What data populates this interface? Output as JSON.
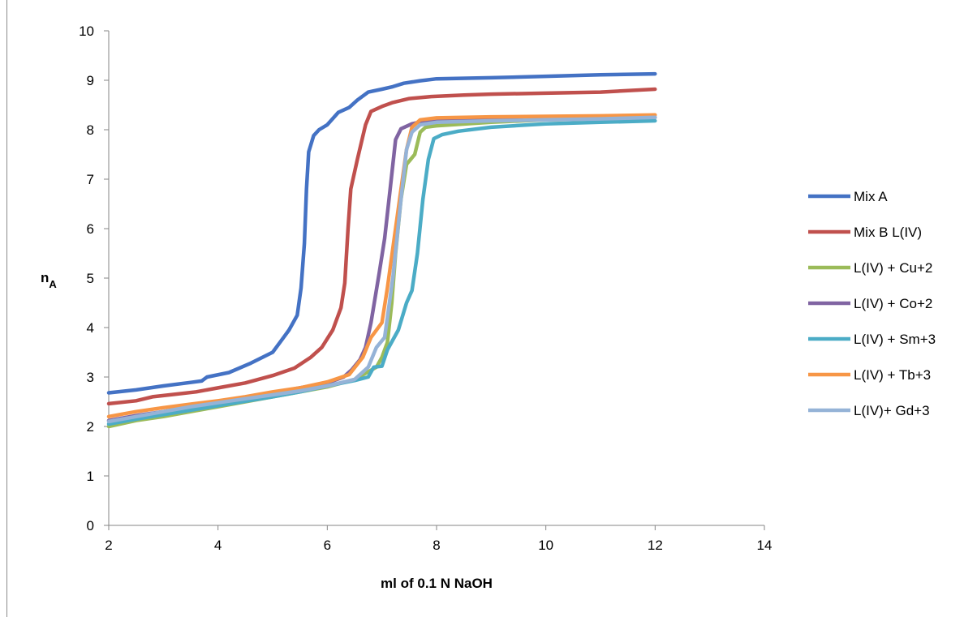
{
  "chart_data": {
    "type": "line",
    "title": "",
    "xlabel": "ml of 0.1 N NaOH",
    "ylabel": "n",
    "ylabel_sub": "A",
    "xlim": [
      2,
      14
    ],
    "ylim": [
      0,
      10
    ],
    "xticks": [
      "2",
      "4",
      "6",
      "8",
      "10",
      "12",
      "14"
    ],
    "yticks": [
      "0",
      "1",
      "2",
      "3",
      "4",
      "5",
      "6",
      "7",
      "8",
      "9",
      "10"
    ],
    "grid": false,
    "legend_position": "right",
    "series": [
      {
        "name": "Mix A",
        "color": "#4472C4",
        "points": [
          [
            2.0,
            2.68
          ],
          [
            2.5,
            2.74
          ],
          [
            3.0,
            2.82
          ],
          [
            3.5,
            2.89
          ],
          [
            3.7,
            2.92
          ],
          [
            3.8,
            3.0
          ],
          [
            4.2,
            3.09
          ],
          [
            4.6,
            3.28
          ],
          [
            5.0,
            3.5
          ],
          [
            5.2,
            3.8
          ],
          [
            5.3,
            3.95
          ],
          [
            5.45,
            4.25
          ],
          [
            5.52,
            4.8
          ],
          [
            5.58,
            5.7
          ],
          [
            5.62,
            6.8
          ],
          [
            5.66,
            7.55
          ],
          [
            5.75,
            7.88
          ],
          [
            5.85,
            8.0
          ],
          [
            6.0,
            8.1
          ],
          [
            6.2,
            8.35
          ],
          [
            6.4,
            8.45
          ],
          [
            6.55,
            8.6
          ],
          [
            6.75,
            8.76
          ],
          [
            7.0,
            8.82
          ],
          [
            7.2,
            8.87
          ],
          [
            7.4,
            8.94
          ],
          [
            7.7,
            8.99
          ],
          [
            8.0,
            9.03
          ],
          [
            9.0,
            9.05
          ],
          [
            10.0,
            9.08
          ],
          [
            11.0,
            9.11
          ],
          [
            12.0,
            9.13
          ]
        ]
      },
      {
        "name": "Mix B L(IV)",
        "color": "#C0504D",
        "points": [
          [
            2.0,
            2.46
          ],
          [
            2.5,
            2.52
          ],
          [
            2.8,
            2.6
          ],
          [
            3.2,
            2.65
          ],
          [
            3.6,
            2.7
          ],
          [
            4.0,
            2.78
          ],
          [
            4.5,
            2.88
          ],
          [
            5.0,
            3.03
          ],
          [
            5.4,
            3.18
          ],
          [
            5.7,
            3.4
          ],
          [
            5.9,
            3.6
          ],
          [
            6.1,
            3.95
          ],
          [
            6.25,
            4.4
          ],
          [
            6.32,
            4.9
          ],
          [
            6.38,
            6.0
          ],
          [
            6.43,
            6.8
          ],
          [
            6.55,
            7.4
          ],
          [
            6.7,
            8.1
          ],
          [
            6.8,
            8.37
          ],
          [
            7.0,
            8.47
          ],
          [
            7.2,
            8.55
          ],
          [
            7.5,
            8.63
          ],
          [
            7.9,
            8.67
          ],
          [
            8.5,
            8.7
          ],
          [
            9.0,
            8.72
          ],
          [
            10.0,
            8.74
          ],
          [
            11.0,
            8.76
          ],
          [
            12.0,
            8.82
          ]
        ]
      },
      {
        "name": "L(IV) + Cu+2",
        "color": "#9BBB59",
        "points": [
          [
            2.0,
            2.0
          ],
          [
            2.5,
            2.12
          ],
          [
            3.0,
            2.2
          ],
          [
            3.5,
            2.3
          ],
          [
            4.0,
            2.4
          ],
          [
            4.5,
            2.5
          ],
          [
            5.0,
            2.6
          ],
          [
            5.5,
            2.7
          ],
          [
            6.0,
            2.8
          ],
          [
            6.5,
            2.95
          ],
          [
            6.9,
            3.2
          ],
          [
            7.0,
            3.4
          ],
          [
            7.1,
            3.7
          ],
          [
            7.18,
            4.5
          ],
          [
            7.25,
            5.5
          ],
          [
            7.35,
            6.6
          ],
          [
            7.45,
            7.3
          ],
          [
            7.6,
            7.5
          ],
          [
            7.7,
            7.95
          ],
          [
            7.8,
            8.05
          ],
          [
            8.0,
            8.08
          ],
          [
            9.0,
            8.15
          ],
          [
            10.0,
            8.2
          ],
          [
            11.0,
            8.22
          ],
          [
            12.0,
            8.25
          ]
        ]
      },
      {
        "name": "L(IV) + Co+2",
        "color": "#8064A2",
        "points": [
          [
            2.0,
            2.12
          ],
          [
            2.5,
            2.22
          ],
          [
            3.0,
            2.3
          ],
          [
            3.5,
            2.4
          ],
          [
            4.0,
            2.5
          ],
          [
            4.5,
            2.58
          ],
          [
            5.0,
            2.68
          ],
          [
            5.5,
            2.78
          ],
          [
            6.0,
            2.88
          ],
          [
            6.3,
            3.0
          ],
          [
            6.45,
            3.15
          ],
          [
            6.6,
            3.35
          ],
          [
            6.7,
            3.6
          ],
          [
            6.8,
            4.1
          ],
          [
            6.95,
            5.1
          ],
          [
            7.05,
            5.8
          ],
          [
            7.15,
            6.8
          ],
          [
            7.25,
            7.8
          ],
          [
            7.35,
            8.02
          ],
          [
            7.55,
            8.12
          ],
          [
            7.8,
            8.18
          ],
          [
            8.0,
            8.2
          ],
          [
            10.0,
            8.22
          ],
          [
            12.0,
            8.25
          ]
        ]
      },
      {
        "name": "L(IV) + Sm+3",
        "color": "#4BACC6",
        "points": [
          [
            2.0,
            2.05
          ],
          [
            2.5,
            2.15
          ],
          [
            3.0,
            2.24
          ],
          [
            3.5,
            2.33
          ],
          [
            4.0,
            2.42
          ],
          [
            4.5,
            2.51
          ],
          [
            5.0,
            2.6
          ],
          [
            5.5,
            2.7
          ],
          [
            6.0,
            2.82
          ],
          [
            6.5,
            2.93
          ],
          [
            6.75,
            3.0
          ],
          [
            6.85,
            3.2
          ],
          [
            7.0,
            3.22
          ],
          [
            7.1,
            3.55
          ],
          [
            7.3,
            3.95
          ],
          [
            7.45,
            4.5
          ],
          [
            7.55,
            4.75
          ],
          [
            7.65,
            5.5
          ],
          [
            7.75,
            6.6
          ],
          [
            7.85,
            7.4
          ],
          [
            7.95,
            7.82
          ],
          [
            8.1,
            7.9
          ],
          [
            8.4,
            7.97
          ],
          [
            9.0,
            8.05
          ],
          [
            10.0,
            8.12
          ],
          [
            11.0,
            8.15
          ],
          [
            12.0,
            8.18
          ]
        ]
      },
      {
        "name": "L(IV) + Tb+3",
        "color": "#F79646",
        "points": [
          [
            2.0,
            2.2
          ],
          [
            2.5,
            2.3
          ],
          [
            3.0,
            2.38
          ],
          [
            3.5,
            2.45
          ],
          [
            4.0,
            2.52
          ],
          [
            4.5,
            2.6
          ],
          [
            5.0,
            2.7
          ],
          [
            5.5,
            2.78
          ],
          [
            6.0,
            2.9
          ],
          [
            6.4,
            3.05
          ],
          [
            6.65,
            3.4
          ],
          [
            6.8,
            3.8
          ],
          [
            7.0,
            4.1
          ],
          [
            7.1,
            4.8
          ],
          [
            7.2,
            5.6
          ],
          [
            7.35,
            6.8
          ],
          [
            7.45,
            7.6
          ],
          [
            7.55,
            8.05
          ],
          [
            7.7,
            8.2
          ],
          [
            8.0,
            8.24
          ],
          [
            9.0,
            8.26
          ],
          [
            10.0,
            8.27
          ],
          [
            11.0,
            8.28
          ],
          [
            12.0,
            8.3
          ]
        ]
      },
      {
        "name": "L(IV)+ Gd+3",
        "color": "#95B3D7",
        "points": [
          [
            2.0,
            2.1
          ],
          [
            2.5,
            2.2
          ],
          [
            3.0,
            2.3
          ],
          [
            3.5,
            2.4
          ],
          [
            4.0,
            2.48
          ],
          [
            4.5,
            2.56
          ],
          [
            5.0,
            2.64
          ],
          [
            5.5,
            2.72
          ],
          [
            6.0,
            2.82
          ],
          [
            6.5,
            2.95
          ],
          [
            6.75,
            3.2
          ],
          [
            6.9,
            3.6
          ],
          [
            7.05,
            3.8
          ],
          [
            7.2,
            5.0
          ],
          [
            7.35,
            6.6
          ],
          [
            7.45,
            7.6
          ],
          [
            7.55,
            7.95
          ],
          [
            7.7,
            8.1
          ],
          [
            8.0,
            8.15
          ],
          [
            9.0,
            8.18
          ],
          [
            10.0,
            8.2
          ],
          [
            11.0,
            8.22
          ],
          [
            12.0,
            8.25
          ]
        ]
      }
    ]
  }
}
